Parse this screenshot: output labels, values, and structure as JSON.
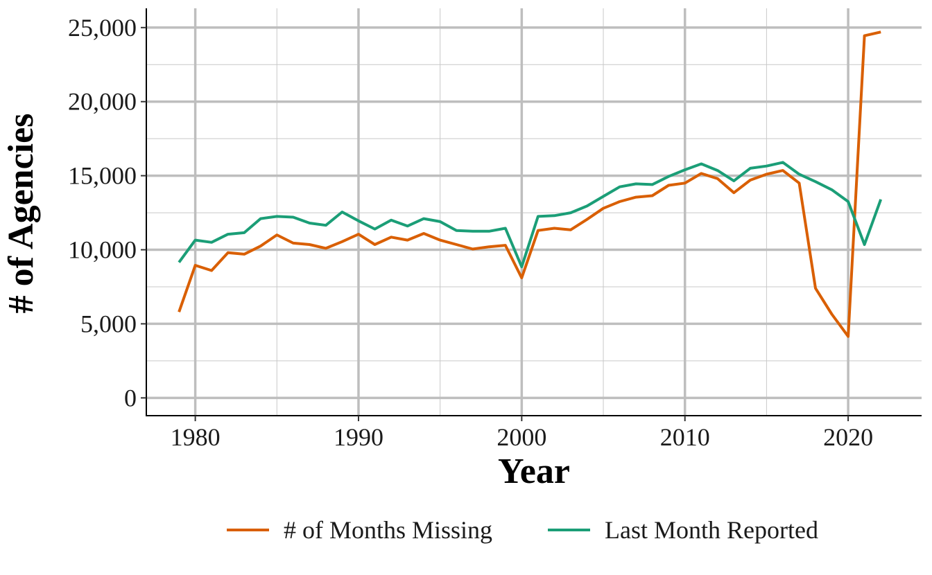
{
  "chart_data": {
    "type": "line",
    "title": "",
    "xlabel": "Year",
    "ylabel": "# of Agencies",
    "xlim": [
      1977,
      2024.5
    ],
    "ylim": [
      -1200,
      26300
    ],
    "x_ticks": [
      1980,
      1990,
      2000,
      2010,
      2020
    ],
    "x_tick_labels": [
      "1980",
      "1990",
      "2000",
      "2010",
      "2020"
    ],
    "y_ticks": [
      0,
      5000,
      10000,
      15000,
      20000,
      25000
    ],
    "y_tick_labels": [
      "0",
      "5,000",
      "10,000",
      "15,000",
      "20,000",
      "25,000"
    ],
    "grid": true,
    "legend_position": "bottom",
    "x": [
      1979,
      1980,
      1981,
      1982,
      1983,
      1984,
      1985,
      1986,
      1987,
      1988,
      1989,
      1990,
      1991,
      1992,
      1993,
      1994,
      1995,
      1996,
      1997,
      1998,
      1999,
      2000,
      2001,
      2002,
      2003,
      2004,
      2005,
      2006,
      2007,
      2008,
      2009,
      2010,
      2011,
      2012,
      2013,
      2014,
      2015,
      2016,
      2017,
      2018,
      2019,
      2020,
      2021,
      2022
    ],
    "series": [
      {
        "name": "# of Months Missing",
        "color": "#d95f02",
        "values": [
          5800,
          8950,
          8600,
          9800,
          9700,
          10250,
          11000,
          10450,
          10350,
          10100,
          10550,
          11050,
          10350,
          10850,
          10650,
          11100,
          10650,
          10350,
          10050,
          10200,
          10300,
          8100,
          11300,
          11450,
          11350,
          12050,
          12800,
          13250,
          13550,
          13650,
          14350,
          14500,
          15150,
          14800,
          13850,
          14700,
          15100,
          15350,
          14500,
          7400,
          5650,
          4150,
          24450,
          24700
        ]
      },
      {
        "name": "Last Month Reported",
        "color": "#1b9e77",
        "values": [
          9150,
          10650,
          10500,
          11050,
          11150,
          12100,
          12250,
          12200,
          11800,
          11650,
          12550,
          11950,
          11400,
          12000,
          11600,
          12100,
          11900,
          11300,
          11250,
          11250,
          11450,
          8850,
          12250,
          12300,
          12500,
          12950,
          13600,
          14250,
          14450,
          14400,
          14950,
          15400,
          15800,
          15350,
          14650,
          15500,
          15650,
          15900,
          15100,
          14600,
          14050,
          13250,
          10350,
          13400
        ]
      }
    ]
  }
}
